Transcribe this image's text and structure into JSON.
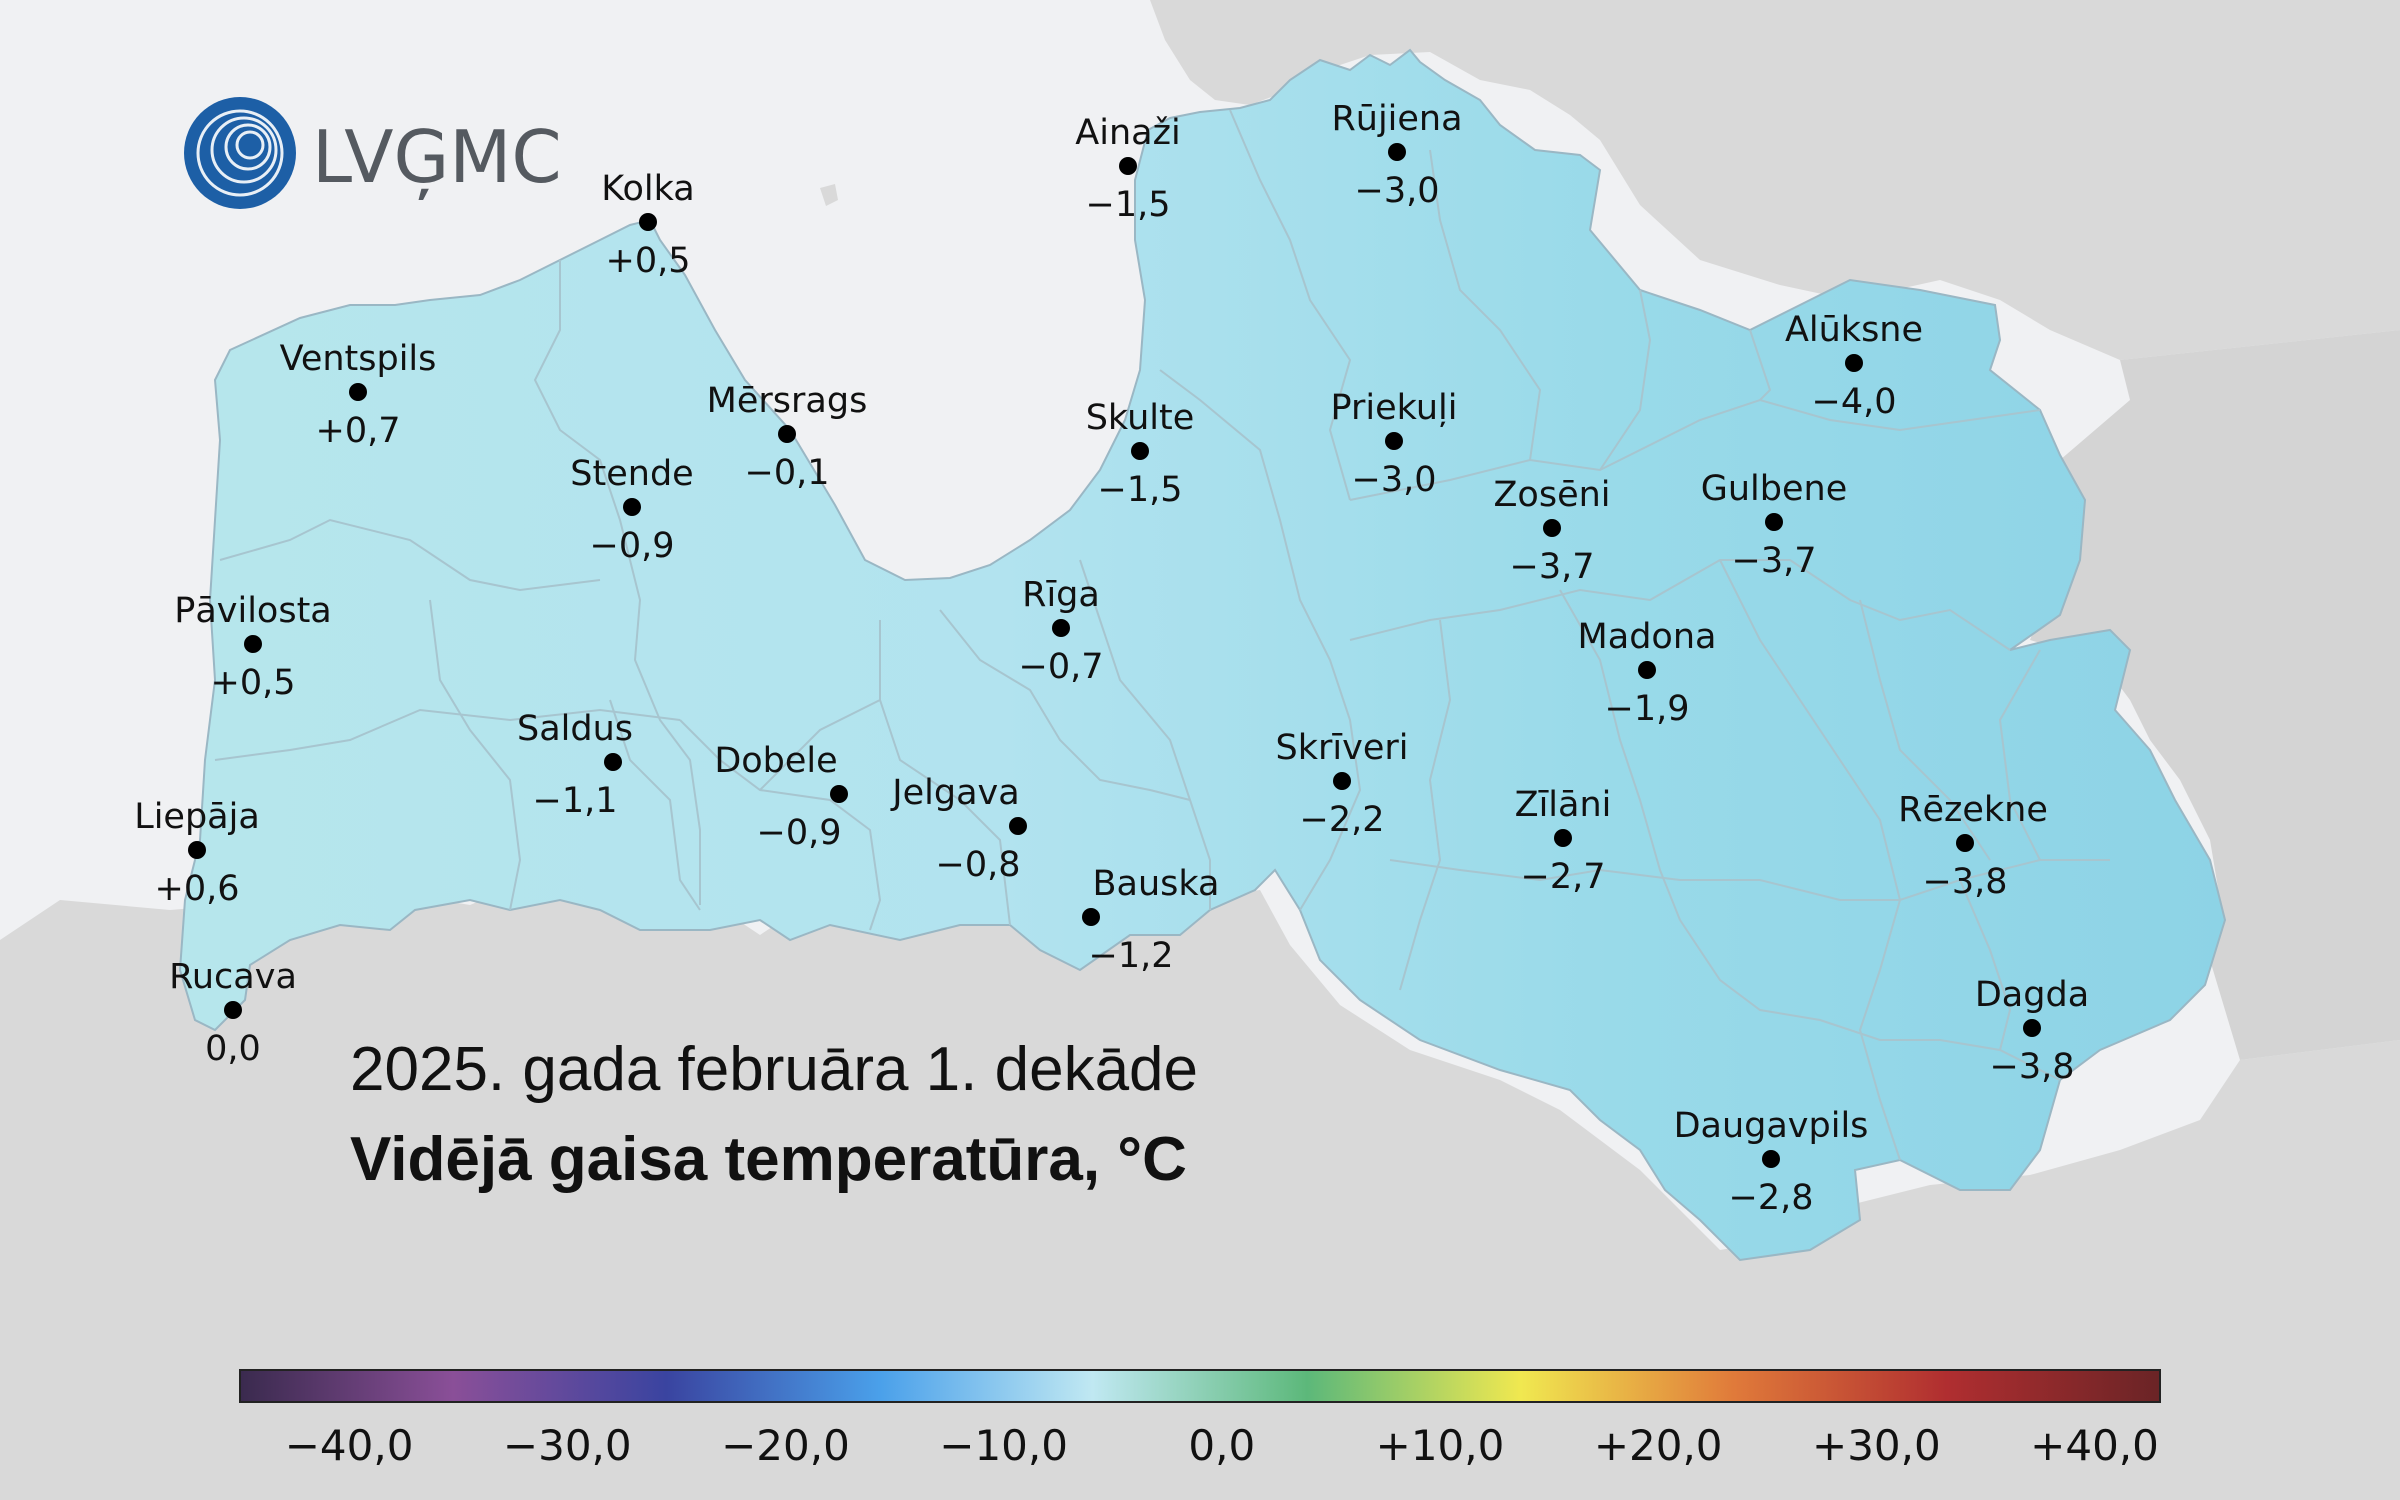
{
  "logo": {
    "text": "LVĢMC"
  },
  "map": {
    "subtitle": "2025. gada februāra 1. dekāde",
    "title": "Vidējā gaisa temperatūra, °C",
    "stations": [
      {
        "name": "Kolka",
        "value": "+0,5",
        "t": 0.5
      },
      {
        "name": "Ventspils",
        "value": "+0,7",
        "t": 0.7
      },
      {
        "name": "Mērsrags",
        "value": "−0,1",
        "t": -0.1
      },
      {
        "name": "Stende",
        "value": "−0,9",
        "t": -0.9
      },
      {
        "name": "Pāvilosta",
        "value": "+0,5",
        "t": 0.5
      },
      {
        "name": "Saldus",
        "value": "−1,1",
        "t": -1.1
      },
      {
        "name": "Dobele",
        "value": "−0,9",
        "t": -0.9
      },
      {
        "name": "Liepāja",
        "value": "+0,6",
        "t": 0.6
      },
      {
        "name": "Rucava",
        "value": "0,0",
        "t": 0.0
      },
      {
        "name": "Ainaži",
        "value": "−1,5",
        "t": -1.5
      },
      {
        "name": "Skulte",
        "value": "−1,5",
        "t": -1.5
      },
      {
        "name": "Rīga",
        "value": "−0,7",
        "t": -0.7
      },
      {
        "name": "Jelgava",
        "value": "−0,8",
        "t": -0.8
      },
      {
        "name": "Bauska",
        "value": "−1,2",
        "t": -1.2
      },
      {
        "name": "Rūjiena",
        "value": "−3,0",
        "t": -3.0
      },
      {
        "name": "Priekuļi",
        "value": "−3,0",
        "t": -3.0
      },
      {
        "name": "Skrīveri",
        "value": "−2,2",
        "t": -2.2
      },
      {
        "name": "Alūksne",
        "value": "−4,0",
        "t": -4.0
      },
      {
        "name": "Zosēni",
        "value": "−3,7",
        "t": -3.7
      },
      {
        "name": "Gulbene",
        "value": "−3,7",
        "t": -3.7
      },
      {
        "name": "Madona",
        "value": "−1,9",
        "t": -1.9
      },
      {
        "name": "Zīlāni",
        "value": "−2,7",
        "t": -2.7
      },
      {
        "name": "Rēzekne",
        "value": "−3,8",
        "t": -3.8
      },
      {
        "name": "Dagda",
        "value": "−3,8",
        "t": -3.8
      },
      {
        "name": "Daugavpils",
        "value": "−2,8",
        "t": -2.8
      }
    ]
  },
  "legend": {
    "min": -45,
    "max": 43,
    "ticks": [
      {
        "label": "−40,0",
        "value": -40
      },
      {
        "label": "−30,0",
        "value": -30
      },
      {
        "label": "−20,0",
        "value": -20
      },
      {
        "label": "−10,0",
        "value": -10
      },
      {
        "label": "0,0",
        "value": 0
      },
      {
        "label": "+10,0",
        "value": 10
      },
      {
        "label": "+20,0",
        "value": 20
      },
      {
        "label": "+30,0",
        "value": 30
      },
      {
        "label": "+40,0",
        "value": 40
      }
    ],
    "colors": [
      "#3a2a4e",
      "#8a4f98",
      "#3a44a0",
      "#4aa0ea",
      "#c0e8f2",
      "#5cb87a",
      "#f0e850",
      "#e07a3a",
      "#b02e30",
      "#6a2426"
    ]
  }
}
